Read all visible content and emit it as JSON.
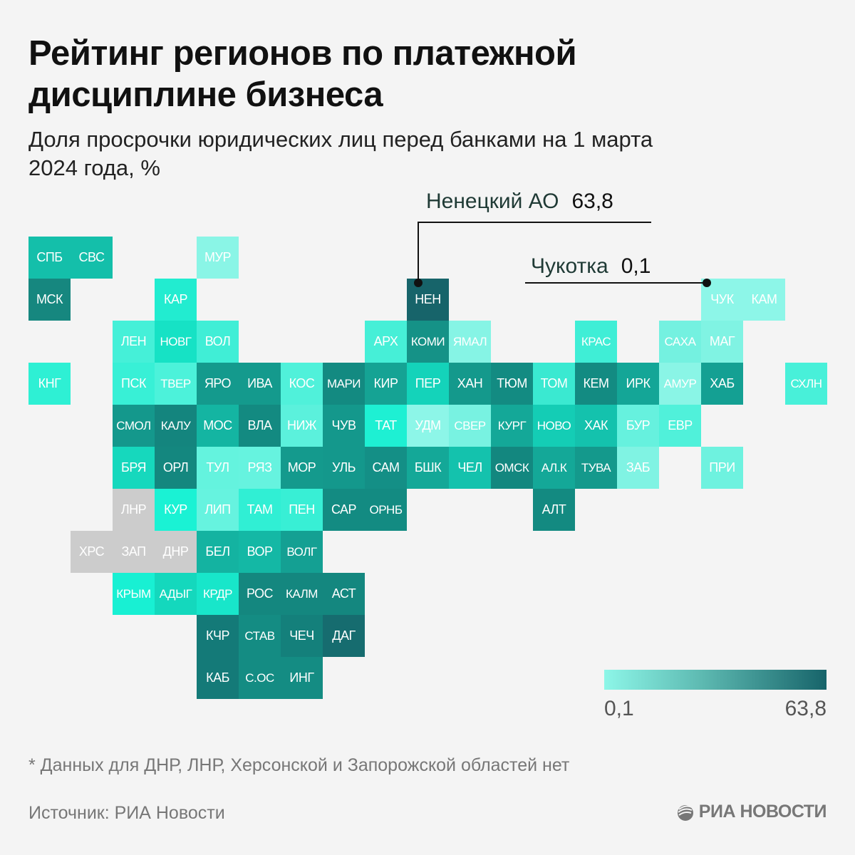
{
  "header": {
    "title": "Рейтинг регионов по платежной дисциплине бизнеса",
    "subtitle": "Доля просрочки юридических лиц перед банками на 1 марта 2024 года, %"
  },
  "callouts": [
    {
      "label": "Ненецкий АО",
      "value": "63,8",
      "region": "НЕН"
    },
    {
      "label": "Чукотка",
      "value": "0,1",
      "region": "ЧУК"
    }
  ],
  "legend": {
    "min_label": "0,1",
    "max_label": "63,8",
    "min_color": "#8df6e8",
    "max_color": "#17646a"
  },
  "footnote": "* Данных для ДНР, ЛНР, Херсонской и Запорожской областей нет",
  "source": "Источник: РИА Новости",
  "logo": {
    "text": "РИА НОВОСТИ",
    "icon": "ria-globe-icon"
  },
  "chart_data": {
    "type": "heatmap",
    "title": "Рейтинг регионов по платежной дисциплине бизнеса",
    "subtitle": "Доля просрочки юридических лиц перед банками на 1 марта 2024 года, %",
    "value_range": [
      0.1,
      63.8
    ],
    "no_data_color": "#cccccc",
    "no_data_regions": [
      "ХРС",
      "ЗАП",
      "ДНР",
      "ЛНР"
    ],
    "labeled_values": {
      "НЕН": 63.8,
      "ЧУК": 0.1
    },
    "cells": [
      {
        "r": 0,
        "c": 0,
        "label": "СПБ",
        "color": "#14bfaa"
      },
      {
        "r": 0,
        "c": 1,
        "label": "СВС",
        "color": "#14bfaa"
      },
      {
        "r": 0,
        "c": 4,
        "label": "МУР",
        "color": "#8af5e6"
      },
      {
        "r": 1,
        "c": 0,
        "label": "МСК",
        "color": "#16877f"
      },
      {
        "r": 1,
        "c": 3,
        "label": "КАР",
        "color": "#22ecd0"
      },
      {
        "r": 1,
        "c": 9,
        "label": "НЕН",
        "color": "#17646a"
      },
      {
        "r": 1,
        "c": 16,
        "label": "ЧУК",
        "color": "#8df6e8"
      },
      {
        "r": 1,
        "c": 17,
        "label": "КАМ",
        "color": "#8df6e8"
      },
      {
        "r": 2,
        "c": 2,
        "label": "ЛЕН",
        "color": "#45f0d8"
      },
      {
        "r": 2,
        "c": 3,
        "label": "НОВГ",
        "color": "#16e2c5"
      },
      {
        "r": 2,
        "c": 4,
        "label": "ВОЛ",
        "color": "#40eed6"
      },
      {
        "r": 2,
        "c": 8,
        "label": "АРХ",
        "color": "#46efd7"
      },
      {
        "r": 2,
        "c": 9,
        "label": "КОМИ",
        "color": "#159287"
      },
      {
        "r": 2,
        "c": 10,
        "label": "ЯМАЛ",
        "color": "#86f4e5"
      },
      {
        "r": 2,
        "c": 13,
        "label": "КРАС",
        "color": "#3feed6"
      },
      {
        "r": 2,
        "c": 15,
        "label": "САХА",
        "color": "#74f1e0"
      },
      {
        "r": 2,
        "c": 16,
        "label": "МАГ",
        "color": "#80f3e3"
      },
      {
        "r": 3,
        "c": 0,
        "label": "КНГ",
        "color": "#2ef0d4"
      },
      {
        "r": 3,
        "c": 2,
        "label": "ПСК",
        "color": "#38f0d6"
      },
      {
        "r": 3,
        "c": 3,
        "label": "ТВЕР",
        "color": "#4cf2da"
      },
      {
        "r": 3,
        "c": 4,
        "label": "ЯРО",
        "color": "#149a8d"
      },
      {
        "r": 3,
        "c": 5,
        "label": "ИВА",
        "color": "#149a8d"
      },
      {
        "r": 3,
        "c": 6,
        "label": "КОС",
        "color": "#50f1da"
      },
      {
        "r": 3,
        "c": 7,
        "label": "МАРИ",
        "color": "#138a81"
      },
      {
        "r": 3,
        "c": 8,
        "label": "КИР",
        "color": "#15a394"
      },
      {
        "r": 3,
        "c": 9,
        "label": "ПЕР",
        "color": "#14d3ba"
      },
      {
        "r": 3,
        "c": 10,
        "label": "ХАН",
        "color": "#14998c"
      },
      {
        "r": 3,
        "c": 11,
        "label": "ТЮМ",
        "color": "#138b82"
      },
      {
        "r": 3,
        "c": 12,
        "label": "ТОМ",
        "color": "#3ae9d1"
      },
      {
        "r": 3,
        "c": 13,
        "label": "КЕМ",
        "color": "#138b82"
      },
      {
        "r": 3,
        "c": 14,
        "label": "ИРК",
        "color": "#14a697"
      },
      {
        "r": 3,
        "c": 15,
        "label": "АМУР",
        "color": "#8af5e6"
      },
      {
        "r": 3,
        "c": 16,
        "label": "ХАБ",
        "color": "#14a093"
      },
      {
        "r": 3,
        "c": 18,
        "label": "СХЛН",
        "color": "#48f0d9"
      },
      {
        "r": 4,
        "c": 2,
        "label": "СМОЛ",
        "color": "#14988c"
      },
      {
        "r": 4,
        "c": 3,
        "label": "КАЛУ",
        "color": "#14857e"
      },
      {
        "r": 4,
        "c": 4,
        "label": "МОС",
        "color": "#14b5a2"
      },
      {
        "r": 4,
        "c": 5,
        "label": "ВЛА",
        "color": "#138a81"
      },
      {
        "r": 4,
        "c": 6,
        "label": "НИЖ",
        "color": "#5bf1dc"
      },
      {
        "r": 4,
        "c": 7,
        "label": "ЧУВ",
        "color": "#14988c"
      },
      {
        "r": 4,
        "c": 8,
        "label": "ТАТ",
        "color": "#1ef0d3"
      },
      {
        "r": 4,
        "c": 9,
        "label": "УДМ",
        "color": "#8df6e8"
      },
      {
        "r": 4,
        "c": 10,
        "label": "СВЕР",
        "color": "#78f2e1"
      },
      {
        "r": 4,
        "c": 11,
        "label": "КУРГ",
        "color": "#14a898"
      },
      {
        "r": 4,
        "c": 12,
        "label": "НОВО",
        "color": "#14cdb5"
      },
      {
        "r": 4,
        "c": 13,
        "label": "ХАК",
        "color": "#14c2ad"
      },
      {
        "r": 4,
        "c": 14,
        "label": "БУР",
        "color": "#66f1de"
      },
      {
        "r": 4,
        "c": 15,
        "label": "ЕВР",
        "color": "#50f1da"
      },
      {
        "r": 5,
        "c": 2,
        "label": "БРЯ",
        "color": "#16d8bd"
      },
      {
        "r": 5,
        "c": 3,
        "label": "ОРЛ",
        "color": "#14877f"
      },
      {
        "r": 5,
        "c": 4,
        "label": "ТУЛ",
        "color": "#64f3de"
      },
      {
        "r": 5,
        "c": 5,
        "label": "РЯЗ",
        "color": "#66f3df"
      },
      {
        "r": 5,
        "c": 6,
        "label": "МОР",
        "color": "#149a8d"
      },
      {
        "r": 5,
        "c": 7,
        "label": "УЛЬ",
        "color": "#14988c"
      },
      {
        "r": 5,
        "c": 8,
        "label": "САМ",
        "color": "#148f86"
      },
      {
        "r": 5,
        "c": 9,
        "label": "БШК",
        "color": "#14a898"
      },
      {
        "r": 5,
        "c": 10,
        "label": "ЧЕЛ",
        "color": "#14c2ad"
      },
      {
        "r": 5,
        "c": 11,
        "label": "ОМСК",
        "color": "#13877f"
      },
      {
        "r": 5,
        "c": 12,
        "label": "АЛ.К",
        "color": "#14a898"
      },
      {
        "r": 5,
        "c": 13,
        "label": "ТУВА",
        "color": "#14998c"
      },
      {
        "r": 5,
        "c": 14,
        "label": "ЗАБ",
        "color": "#80f3e3"
      },
      {
        "r": 5,
        "c": 16,
        "label": "ПРИ",
        "color": "#6ef2df"
      },
      {
        "r": 6,
        "c": 2,
        "label": "ЛНР",
        "color": "#cccccc"
      },
      {
        "r": 6,
        "c": 3,
        "label": "КУР",
        "color": "#1af2d4"
      },
      {
        "r": 6,
        "c": 4,
        "label": "ЛИП",
        "color": "#66f3df"
      },
      {
        "r": 6,
        "c": 5,
        "label": "ТАМ",
        "color": "#30efd4"
      },
      {
        "r": 6,
        "c": 6,
        "label": "ПЕН",
        "color": "#38efd5"
      },
      {
        "r": 6,
        "c": 7,
        "label": "САР",
        "color": "#138b82"
      },
      {
        "r": 6,
        "c": 8,
        "label": "ОРНБ",
        "color": "#138b82"
      },
      {
        "r": 6,
        "c": 12,
        "label": "АЛТ",
        "color": "#138a81"
      },
      {
        "r": 7,
        "c": 1,
        "label": "ХРС",
        "color": "#cccccc"
      },
      {
        "r": 7,
        "c": 2,
        "label": "ЗАП",
        "color": "#cccccc"
      },
      {
        "r": 7,
        "c": 3,
        "label": "ДНР",
        "color": "#cccccc"
      },
      {
        "r": 7,
        "c": 4,
        "label": "БЕЛ",
        "color": "#14b3a1"
      },
      {
        "r": 7,
        "c": 5,
        "label": "ВОР",
        "color": "#14b8a5"
      },
      {
        "r": 7,
        "c": 6,
        "label": "ВОЛГ",
        "color": "#14a093"
      },
      {
        "r": 8,
        "c": 2,
        "label": "КРЫМ",
        "color": "#18f0d3"
      },
      {
        "r": 8,
        "c": 3,
        "label": "АДЫГ",
        "color": "#14d8bd"
      },
      {
        "r": 8,
        "c": 4,
        "label": "КРДР",
        "color": "#18e6ca"
      },
      {
        "r": 8,
        "c": 5,
        "label": "РОС",
        "color": "#14877f"
      },
      {
        "r": 8,
        "c": 6,
        "label": "КАЛМ",
        "color": "#14877f"
      },
      {
        "r": 8,
        "c": 7,
        "label": "АСТ",
        "color": "#14877f"
      },
      {
        "r": 9,
        "c": 4,
        "label": "КЧР",
        "color": "#147a78"
      },
      {
        "r": 9,
        "c": 5,
        "label": "СТАВ",
        "color": "#148c83"
      },
      {
        "r": 9,
        "c": 6,
        "label": "ЧЕЧ",
        "color": "#14807b"
      },
      {
        "r": 9,
        "c": 7,
        "label": "ДАГ",
        "color": "#166c6f"
      },
      {
        "r": 10,
        "c": 4,
        "label": "КАБ",
        "color": "#147a78"
      },
      {
        "r": 10,
        "c": 5,
        "label": "С.ОС",
        "color": "#148c83"
      },
      {
        "r": 10,
        "c": 6,
        "label": "ИНГ",
        "color": "#148c83"
      }
    ]
  }
}
